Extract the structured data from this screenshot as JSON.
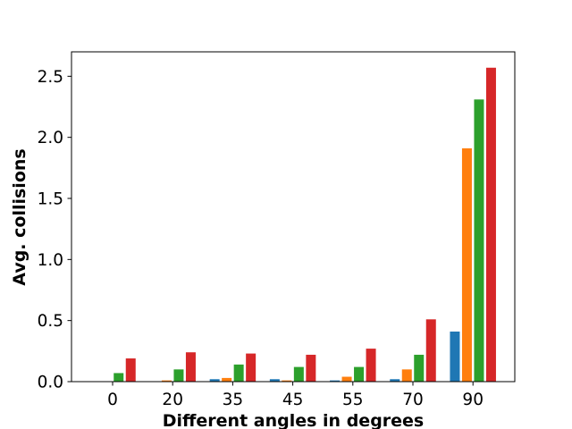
{
  "chart_data": {
    "type": "bar",
    "title": "",
    "xlabel": "Different angles in degrees",
    "ylabel": "Avg. collisions",
    "categories": [
      "0",
      "20",
      "35",
      "45",
      "55",
      "70",
      "90"
    ],
    "series": [
      {
        "color": "#1f77b4",
        "values": [
          0.0,
          0.0,
          0.02,
          0.02,
          0.01,
          0.02,
          0.41
        ]
      },
      {
        "color": "#ff7f0e",
        "values": [
          0.0,
          0.01,
          0.03,
          0.01,
          0.04,
          0.1,
          1.91
        ]
      },
      {
        "color": "#2ca02c",
        "values": [
          0.07,
          0.1,
          0.14,
          0.12,
          0.12,
          0.22,
          2.31
        ]
      },
      {
        "color": "#d62728",
        "values": [
          0.19,
          0.24,
          0.23,
          0.22,
          0.27,
          0.51,
          2.57
        ]
      }
    ],
    "y_ticks": [
      "0.0",
      "0.5",
      "1.0",
      "1.5",
      "2.0",
      "2.5"
    ],
    "ylim": [
      0,
      2.7
    ],
    "grid": false,
    "legend": "none"
  }
}
